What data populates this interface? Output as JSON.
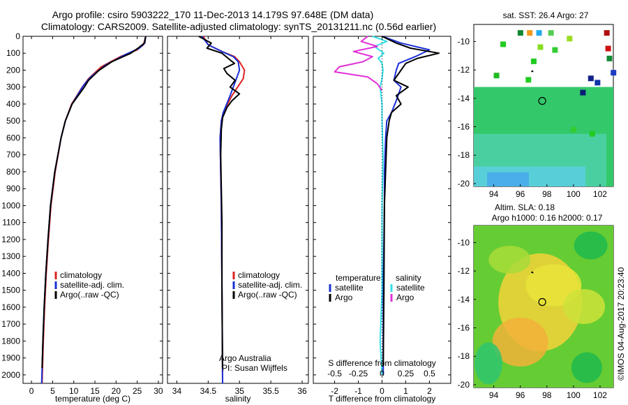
{
  "header": {
    "title1": "Argo profile: csiro 5903222_170 11-Dec-2013 14.179S 97.648E (DM data)",
    "title2": "Climatology: CARS2009. Satellite-adjusted climatology: synTS_20131211.nc (0.56d earlier)"
  },
  "colors": {
    "climatology": "#dd2222",
    "satellite": "#1a2fd6",
    "argo": "#000000",
    "sal_satellite": "#33e0e8",
    "sal_argo": "#e030d8"
  },
  "chart_data": [
    {
      "type": "line",
      "title": "",
      "xlabel": "temperature (deg C)",
      "ylabel": "depth",
      "xlim": [
        -2,
        31
      ],
      "ylim": [
        2050,
        0
      ],
      "xticks": [
        "0",
        "5",
        "10",
        "15",
        "20",
        "25",
        "30"
      ],
      "yticks": [
        "0",
        "100",
        "200",
        "300",
        "400",
        "500",
        "600",
        "700",
        "800",
        "900",
        "1000",
        "1100",
        "1200",
        "1300",
        "1400",
        "1500",
        "1600",
        "1700",
        "1800",
        "1900",
        "2000"
      ],
      "legend": [
        "climatology",
        "satellite-adj. clim.",
        "Argo(..raw -QC)"
      ],
      "series": [
        {
          "name": "climatology",
          "depth": [
            0,
            50,
            80,
            120,
            180,
            250,
            300,
            400,
            500,
            600,
            800,
            1000,
            1200,
            1400,
            1600,
            1800,
            2050
          ],
          "values": [
            27,
            26.5,
            25,
            21,
            16.5,
            13.5,
            12,
            9.5,
            8,
            7,
            5.6,
            4.6,
            4,
            3.5,
            3.1,
            2.8,
            2.5
          ]
        },
        {
          "name": "satellite-adj. clim.",
          "depth": [
            0,
            40,
            70,
            110,
            170,
            240,
            290,
            400,
            500,
            600,
            800,
            1000,
            1200,
            1400,
            1600,
            1800,
            2050
          ],
          "values": [
            27,
            26.8,
            25.5,
            22,
            17.5,
            14,
            12.3,
            9.6,
            8,
            7,
            5.5,
            4.5,
            3.9,
            3.4,
            3,
            2.7,
            2.4
          ]
        },
        {
          "name": "Argo(..raw -QC)",
          "depth": [
            0,
            40,
            70,
            100,
            150,
            200,
            260,
            300,
            400,
            500,
            600,
            800,
            1000,
            1200,
            1400,
            1600,
            1800,
            1960
          ],
          "values": [
            27,
            26.7,
            25.2,
            23.5,
            19,
            16,
            13.5,
            12.5,
            9.6,
            8,
            7,
            5.5,
            4.5,
            3.9,
            3.4,
            3,
            2.7,
            2.5
          ]
        }
      ]
    },
    {
      "type": "line",
      "title": "",
      "xlabel": "salinity",
      "ylabel": "depth",
      "xlim": [
        33.85,
        36.1
      ],
      "ylim": [
        2050,
        0
      ],
      "xticks": [
        "34",
        "34.5",
        "35",
        "35.5",
        "36"
      ],
      "legend": [
        "climatology",
        "satellite-adj. clim.",
        "Argo(..raw -QC)"
      ],
      "annotations": [
        "Argo Australia",
        "PI: Susan Wijffels"
      ],
      "series": [
        {
          "name": "climatology",
          "depth": [
            0,
            50,
            90,
            120,
            150,
            200,
            250,
            350,
            450,
            500,
            600,
            800,
            1000,
            1500,
            2050
          ],
          "values": [
            34.42,
            34.5,
            34.72,
            34.92,
            35,
            35.08,
            35.06,
            34.88,
            34.74,
            34.71,
            34.69,
            34.7,
            34.71,
            34.72,
            34.73
          ]
        },
        {
          "name": "satellite-adj. clim.",
          "depth": [
            0,
            50,
            90,
            120,
            150,
            200,
            250,
            350,
            450,
            500,
            600,
            800,
            1000,
            1500,
            2050
          ],
          "values": [
            34.4,
            34.5,
            34.72,
            34.9,
            34.98,
            35.0,
            34.95,
            34.85,
            34.74,
            34.71,
            34.69,
            34.7,
            34.71,
            34.72,
            34.73
          ]
        },
        {
          "name": "Argo(..raw -QC)",
          "depth": [
            0,
            40,
            70,
            100,
            140,
            160,
            190,
            220,
            260,
            300,
            340,
            380,
            420,
            480,
            550,
            700,
            900,
            1100,
            1500,
            1960
          ],
          "values": [
            34.35,
            34.55,
            34.48,
            34.72,
            34.85,
            34.92,
            34.75,
            34.8,
            34.93,
            34.85,
            35.0,
            34.88,
            34.8,
            34.73,
            34.71,
            34.7,
            34.71,
            34.72,
            34.72,
            34.73
          ]
        }
      ]
    },
    {
      "type": "line",
      "title": "",
      "xlabel": "T difference from climatology",
      "xlabel2": "S difference from climatology",
      "xlim": [
        -2.9,
        2.9
      ],
      "x2lim": [
        -0.725,
        0.725
      ],
      "ylim": [
        2050,
        0
      ],
      "xticks": [
        "-2",
        "-1",
        "0",
        "1",
        "2"
      ],
      "x2ticks": [
        "-0.5",
        "-0.25",
        "0",
        "0.25",
        "0.5"
      ],
      "legend_temperature": [
        "temperature",
        "satellite",
        "Argo"
      ],
      "legend_salinity": [
        "salinity",
        "satellite",
        "Argo"
      ],
      "series": [
        {
          "name": "temperature satellite",
          "depth": [
            0,
            40,
            80,
            120,
            160,
            200,
            260,
            300,
            380,
            450,
            500,
            600,
            800,
            1000,
            1500,
            2000
          ],
          "values": [
            0,
            0.8,
            2.0,
            1.4,
            0.7,
            0.6,
            0.5,
            0.8,
            0.6,
            0.4,
            0.2,
            0.15,
            0.1,
            0.1,
            0.05,
            0.05
          ]
        },
        {
          "name": "temperature Argo",
          "depth": [
            0,
            40,
            70,
            100,
            130,
            160,
            200,
            260,
            300,
            350,
            400,
            450,
            500,
            600,
            800,
            1000,
            1500,
            1950
          ],
          "values": [
            0,
            0.6,
            1.2,
            2.4,
            1.5,
            1.0,
            0.8,
            0.5,
            1.1,
            0.6,
            0.8,
            0.4,
            0.3,
            0.2,
            0.15,
            0.1,
            0.08,
            0.05
          ]
        },
        {
          "name": "salinity satellite",
          "depth": [
            0,
            30,
            60,
            100,
            130,
            160,
            200,
            250,
            300,
            400,
            500,
            700,
            1000,
            1500,
            1800,
            2000
          ],
          "values": [
            -0.1,
            0.05,
            -0.08,
            0.02,
            -0.04,
            0,
            0.01,
            0,
            -0.02,
            0,
            0,
            0.01,
            0,
            0,
            -0.02,
            0
          ]
        },
        {
          "name": "salinity Argo",
          "depth": [
            0,
            30,
            60,
            90,
            120,
            150,
            180,
            210,
            240,
            280,
            320
          ],
          "values": [
            -0.15,
            -0.22,
            -0.05,
            -0.3,
            -0.1,
            -0.2,
            -0.45,
            -0.5,
            -0.15,
            -0.05,
            0
          ]
        }
      ]
    }
  ],
  "maps": {
    "sst": {
      "label": "sat. SST: 26.4 Argo: 27",
      "yticks": [
        "-10",
        "-12",
        "-14",
        "-16",
        "-18",
        "-20"
      ],
      "xticks": [
        "94",
        "96",
        "98",
        "100",
        "102"
      ]
    },
    "sla": {
      "label1": "Altim. SLA: 0.18",
      "label2": "Argo h1000: 0.16 h2000: 0.17",
      "yticks": [
        "-10",
        "-12",
        "-14",
        "-16",
        "-18",
        "-20"
      ],
      "xticks": [
        "94",
        "96",
        "98",
        "100",
        "102"
      ]
    }
  },
  "credit": "©IMOS 04-Aug-2017 20:23:40"
}
